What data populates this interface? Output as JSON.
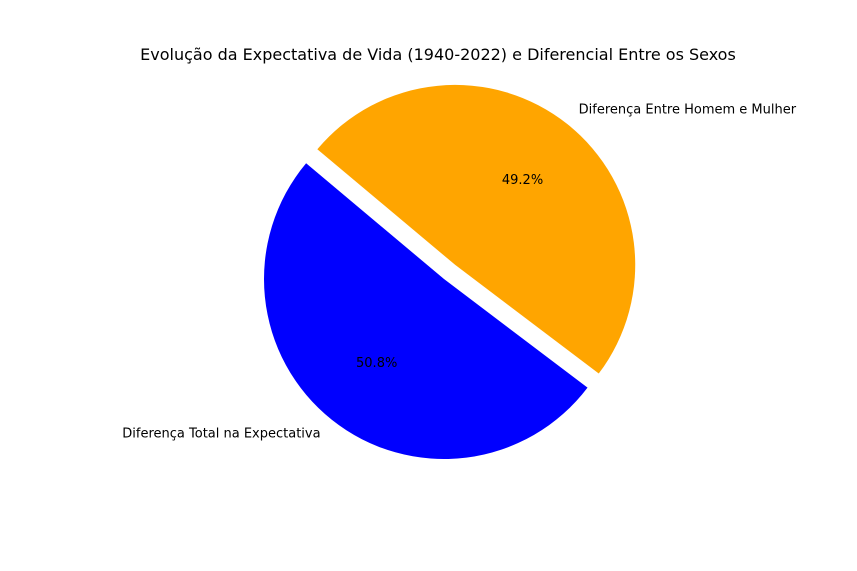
{
  "chart_data": {
    "type": "pie",
    "title": "Evolução da Expectativa de Vida (1940-2022) e Diferencial Entre os Sexos",
    "slices": [
      {
        "label": "Diferença Total na Expectativa",
        "value": 50.8,
        "pct_label": "50.8%",
        "color": "#0000ff",
        "exploded": false
      },
      {
        "label": "Diferença Entre Homem e Mulher",
        "value": 49.2,
        "pct_label": "49.2%",
        "color": "#ffa500",
        "exploded": true
      }
    ],
    "legend": "none"
  }
}
